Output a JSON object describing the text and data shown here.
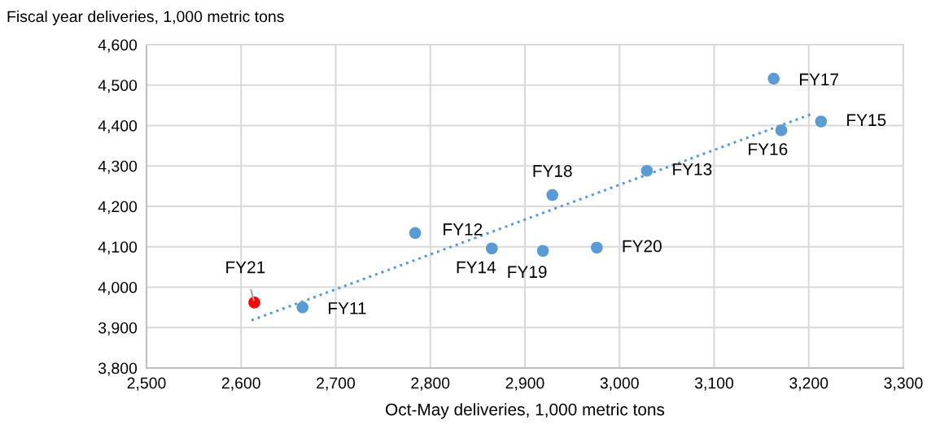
{
  "chart_data": {
    "type": "scatter",
    "xlabel": "Oct-May deliveries, 1,000 metric tons",
    "ylabel": "Fiscal year deliveries, 1,000 metric tons",
    "xlim": [
      2500,
      3300
    ],
    "xticks": [
      {
        "value": 2500,
        "label": "2,500"
      },
      {
        "value": 2600,
        "label": "2,600"
      },
      {
        "value": 2700,
        "label": "2,700"
      },
      {
        "value": 2800,
        "label": "2,800"
      },
      {
        "value": 2900,
        "label": "2,900"
      },
      {
        "value": 3000,
        "label": "3,000"
      },
      {
        "value": 3100,
        "label": "3,100"
      },
      {
        "value": 3200,
        "label": "3,200"
      },
      {
        "value": 3300,
        "label": "3,300"
      }
    ],
    "ylim": [
      3800,
      4600
    ],
    "yticks": [
      {
        "value": 3800,
        "label": "3,800"
      },
      {
        "value": 3900,
        "label": "3,900"
      },
      {
        "value": 4000,
        "label": "4,000"
      },
      {
        "value": 4100,
        "label": "4,100"
      },
      {
        "value": 4200,
        "label": "4,200"
      },
      {
        "value": 4300,
        "label": "4,300"
      },
      {
        "value": 4400,
        "label": "4,400"
      },
      {
        "value": 4500,
        "label": "4,500"
      },
      {
        "value": 4600,
        "label": "4,600"
      }
    ],
    "grid": true,
    "marker": "circle",
    "series": [
      {
        "type": "line",
        "line_style": "dotted",
        "marker": "none",
        "color": "#5b9bd5",
        "x": [
          2611,
          3205
        ],
        "values": [
          3918,
          4430
        ]
      },
      {
        "color": "#5b9bd5",
        "x": [
          2665,
          2784,
          3029,
          2865,
          3213,
          3171,
          3163,
          2929,
          2919,
          2976
        ],
        "values": [
          3950,
          4134,
          4288,
          4096,
          4410,
          4388,
          4516,
          4228,
          4090,
          4098
        ]
      },
      {
        "color": "#ff0000",
        "x": [
          2614
        ],
        "values": [
          3962
        ]
      }
    ],
    "annotations": [
      {
        "text": "FY11",
        "x": 2665,
        "y": 3950
      },
      {
        "text": "FY12",
        "x": 2784,
        "y": 4134
      },
      {
        "text": "FY13",
        "x": 3029,
        "y": 4288
      },
      {
        "text": "FY14",
        "x": 2865,
        "y": 4096
      },
      {
        "text": "FY15",
        "x": 3213,
        "y": 4410
      },
      {
        "text": "FY16",
        "x": 3171,
        "y": 4388
      },
      {
        "text": "FY17",
        "x": 3163,
        "y": 4516
      },
      {
        "text": "FY18",
        "x": 2929,
        "y": 4228
      },
      {
        "text": "FY19",
        "x": 2919,
        "y": 4090
      },
      {
        "text": "FY20",
        "x": 2976,
        "y": 4098
      },
      {
        "text": "FY21",
        "x": 2614,
        "y": 3962
      }
    ]
  }
}
